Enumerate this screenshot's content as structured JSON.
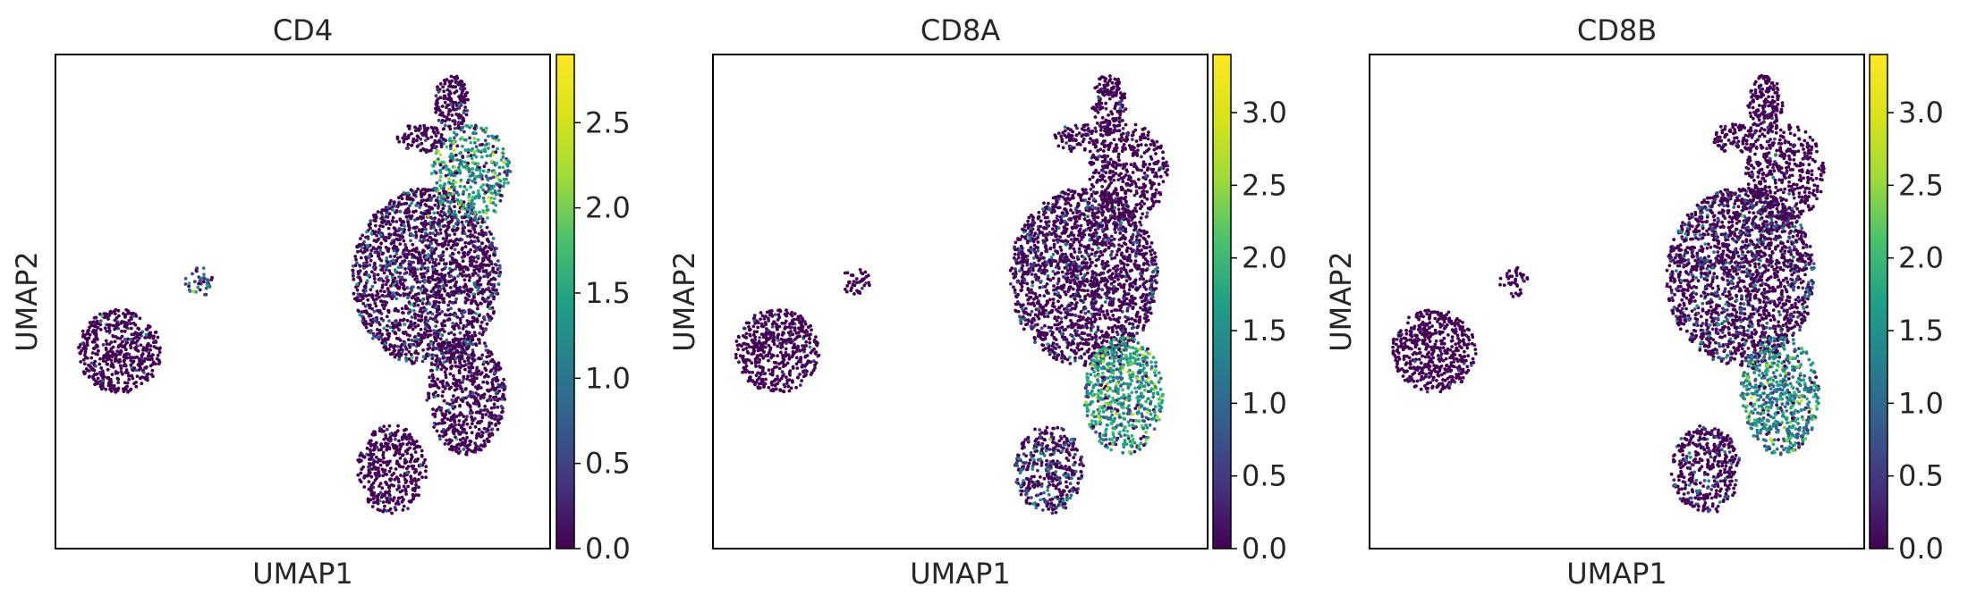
{
  "chart_data": [
    {
      "type": "scatter",
      "title": "CD4",
      "xlabel": "UMAP1",
      "ylabel": "UMAP2",
      "colorbar": {
        "colormap": "viridis",
        "range": [
          0,
          2.9
        ],
        "ticks": [
          "0.0",
          "0.5",
          "1.0",
          "1.5",
          "2.0",
          "2.5"
        ]
      },
      "clusters": [
        {
          "cx": 0.13,
          "cy": 0.4,
          "rx": 0.085,
          "ry": 0.085,
          "mean": 0.03,
          "n": 500
        },
        {
          "cx": 0.29,
          "cy": 0.54,
          "rx": 0.03,
          "ry": 0.03,
          "mean": 0.9,
          "n": 40
        },
        {
          "cx": 0.75,
          "cy": 0.55,
          "rx": 0.15,
          "ry": 0.18,
          "mean": 0.4,
          "n": 1900
        },
        {
          "cx": 0.84,
          "cy": 0.76,
          "rx": 0.08,
          "ry": 0.1,
          "mean": 1.3,
          "n": 420
        },
        {
          "cx": 0.8,
          "cy": 0.9,
          "rx": 0.035,
          "ry": 0.06,
          "mean": 0.25,
          "n": 160
        },
        {
          "cx": 0.74,
          "cy": 0.83,
          "rx": 0.05,
          "ry": 0.03,
          "mean": 0.3,
          "n": 90
        },
        {
          "cx": 0.83,
          "cy": 0.31,
          "rx": 0.08,
          "ry": 0.12,
          "mean": 0.2,
          "n": 620
        },
        {
          "cx": 0.68,
          "cy": 0.16,
          "rx": 0.07,
          "ry": 0.09,
          "mean": 0.05,
          "n": 400
        }
      ]
    },
    {
      "type": "scatter",
      "title": "CD8A",
      "xlabel": "UMAP1",
      "ylabel": "UMAP2",
      "colorbar": {
        "colormap": "viridis",
        "range": [
          0,
          3.4
        ],
        "ticks": [
          "0.0",
          "0.5",
          "1.0",
          "1.5",
          "2.0",
          "2.5",
          "3.0"
        ]
      },
      "clusters": [
        {
          "cx": 0.13,
          "cy": 0.4,
          "rx": 0.085,
          "ry": 0.085,
          "mean": 0.03,
          "n": 500
        },
        {
          "cx": 0.29,
          "cy": 0.54,
          "rx": 0.03,
          "ry": 0.03,
          "mean": 0.1,
          "n": 40
        },
        {
          "cx": 0.75,
          "cy": 0.55,
          "rx": 0.15,
          "ry": 0.18,
          "mean": 0.35,
          "n": 1900
        },
        {
          "cx": 0.84,
          "cy": 0.76,
          "rx": 0.08,
          "ry": 0.1,
          "mean": 0.05,
          "n": 420
        },
        {
          "cx": 0.8,
          "cy": 0.9,
          "rx": 0.035,
          "ry": 0.06,
          "mean": 0.05,
          "n": 160
        },
        {
          "cx": 0.74,
          "cy": 0.83,
          "rx": 0.05,
          "ry": 0.03,
          "mean": 0.05,
          "n": 90
        },
        {
          "cx": 0.83,
          "cy": 0.31,
          "rx": 0.08,
          "ry": 0.12,
          "mean": 1.6,
          "n": 620
        },
        {
          "cx": 0.68,
          "cy": 0.16,
          "rx": 0.07,
          "ry": 0.09,
          "mean": 0.6,
          "n": 400
        }
      ]
    },
    {
      "type": "scatter",
      "title": "CD8B",
      "xlabel": "UMAP1",
      "ylabel": "UMAP2",
      "colorbar": {
        "colormap": "viridis",
        "range": [
          0,
          3.4
        ],
        "ticks": [
          "0.0",
          "0.5",
          "1.0",
          "1.5",
          "2.0",
          "2.5",
          "3.0"
        ]
      },
      "clusters": [
        {
          "cx": 0.13,
          "cy": 0.4,
          "rx": 0.085,
          "ry": 0.085,
          "mean": 0.03,
          "n": 500
        },
        {
          "cx": 0.29,
          "cy": 0.54,
          "rx": 0.03,
          "ry": 0.03,
          "mean": 0.05,
          "n": 40
        },
        {
          "cx": 0.75,
          "cy": 0.55,
          "rx": 0.15,
          "ry": 0.18,
          "mean": 0.45,
          "n": 1900
        },
        {
          "cx": 0.84,
          "cy": 0.76,
          "rx": 0.08,
          "ry": 0.1,
          "mean": 0.05,
          "n": 420
        },
        {
          "cx": 0.8,
          "cy": 0.9,
          "rx": 0.035,
          "ry": 0.06,
          "mean": 0.05,
          "n": 160
        },
        {
          "cx": 0.74,
          "cy": 0.83,
          "rx": 0.05,
          "ry": 0.03,
          "mean": 0.05,
          "n": 90
        },
        {
          "cx": 0.83,
          "cy": 0.31,
          "rx": 0.08,
          "ry": 0.12,
          "mean": 1.4,
          "n": 620
        },
        {
          "cx": 0.68,
          "cy": 0.16,
          "rx": 0.07,
          "ry": 0.09,
          "mean": 0.4,
          "n": 400
        }
      ]
    }
  ]
}
